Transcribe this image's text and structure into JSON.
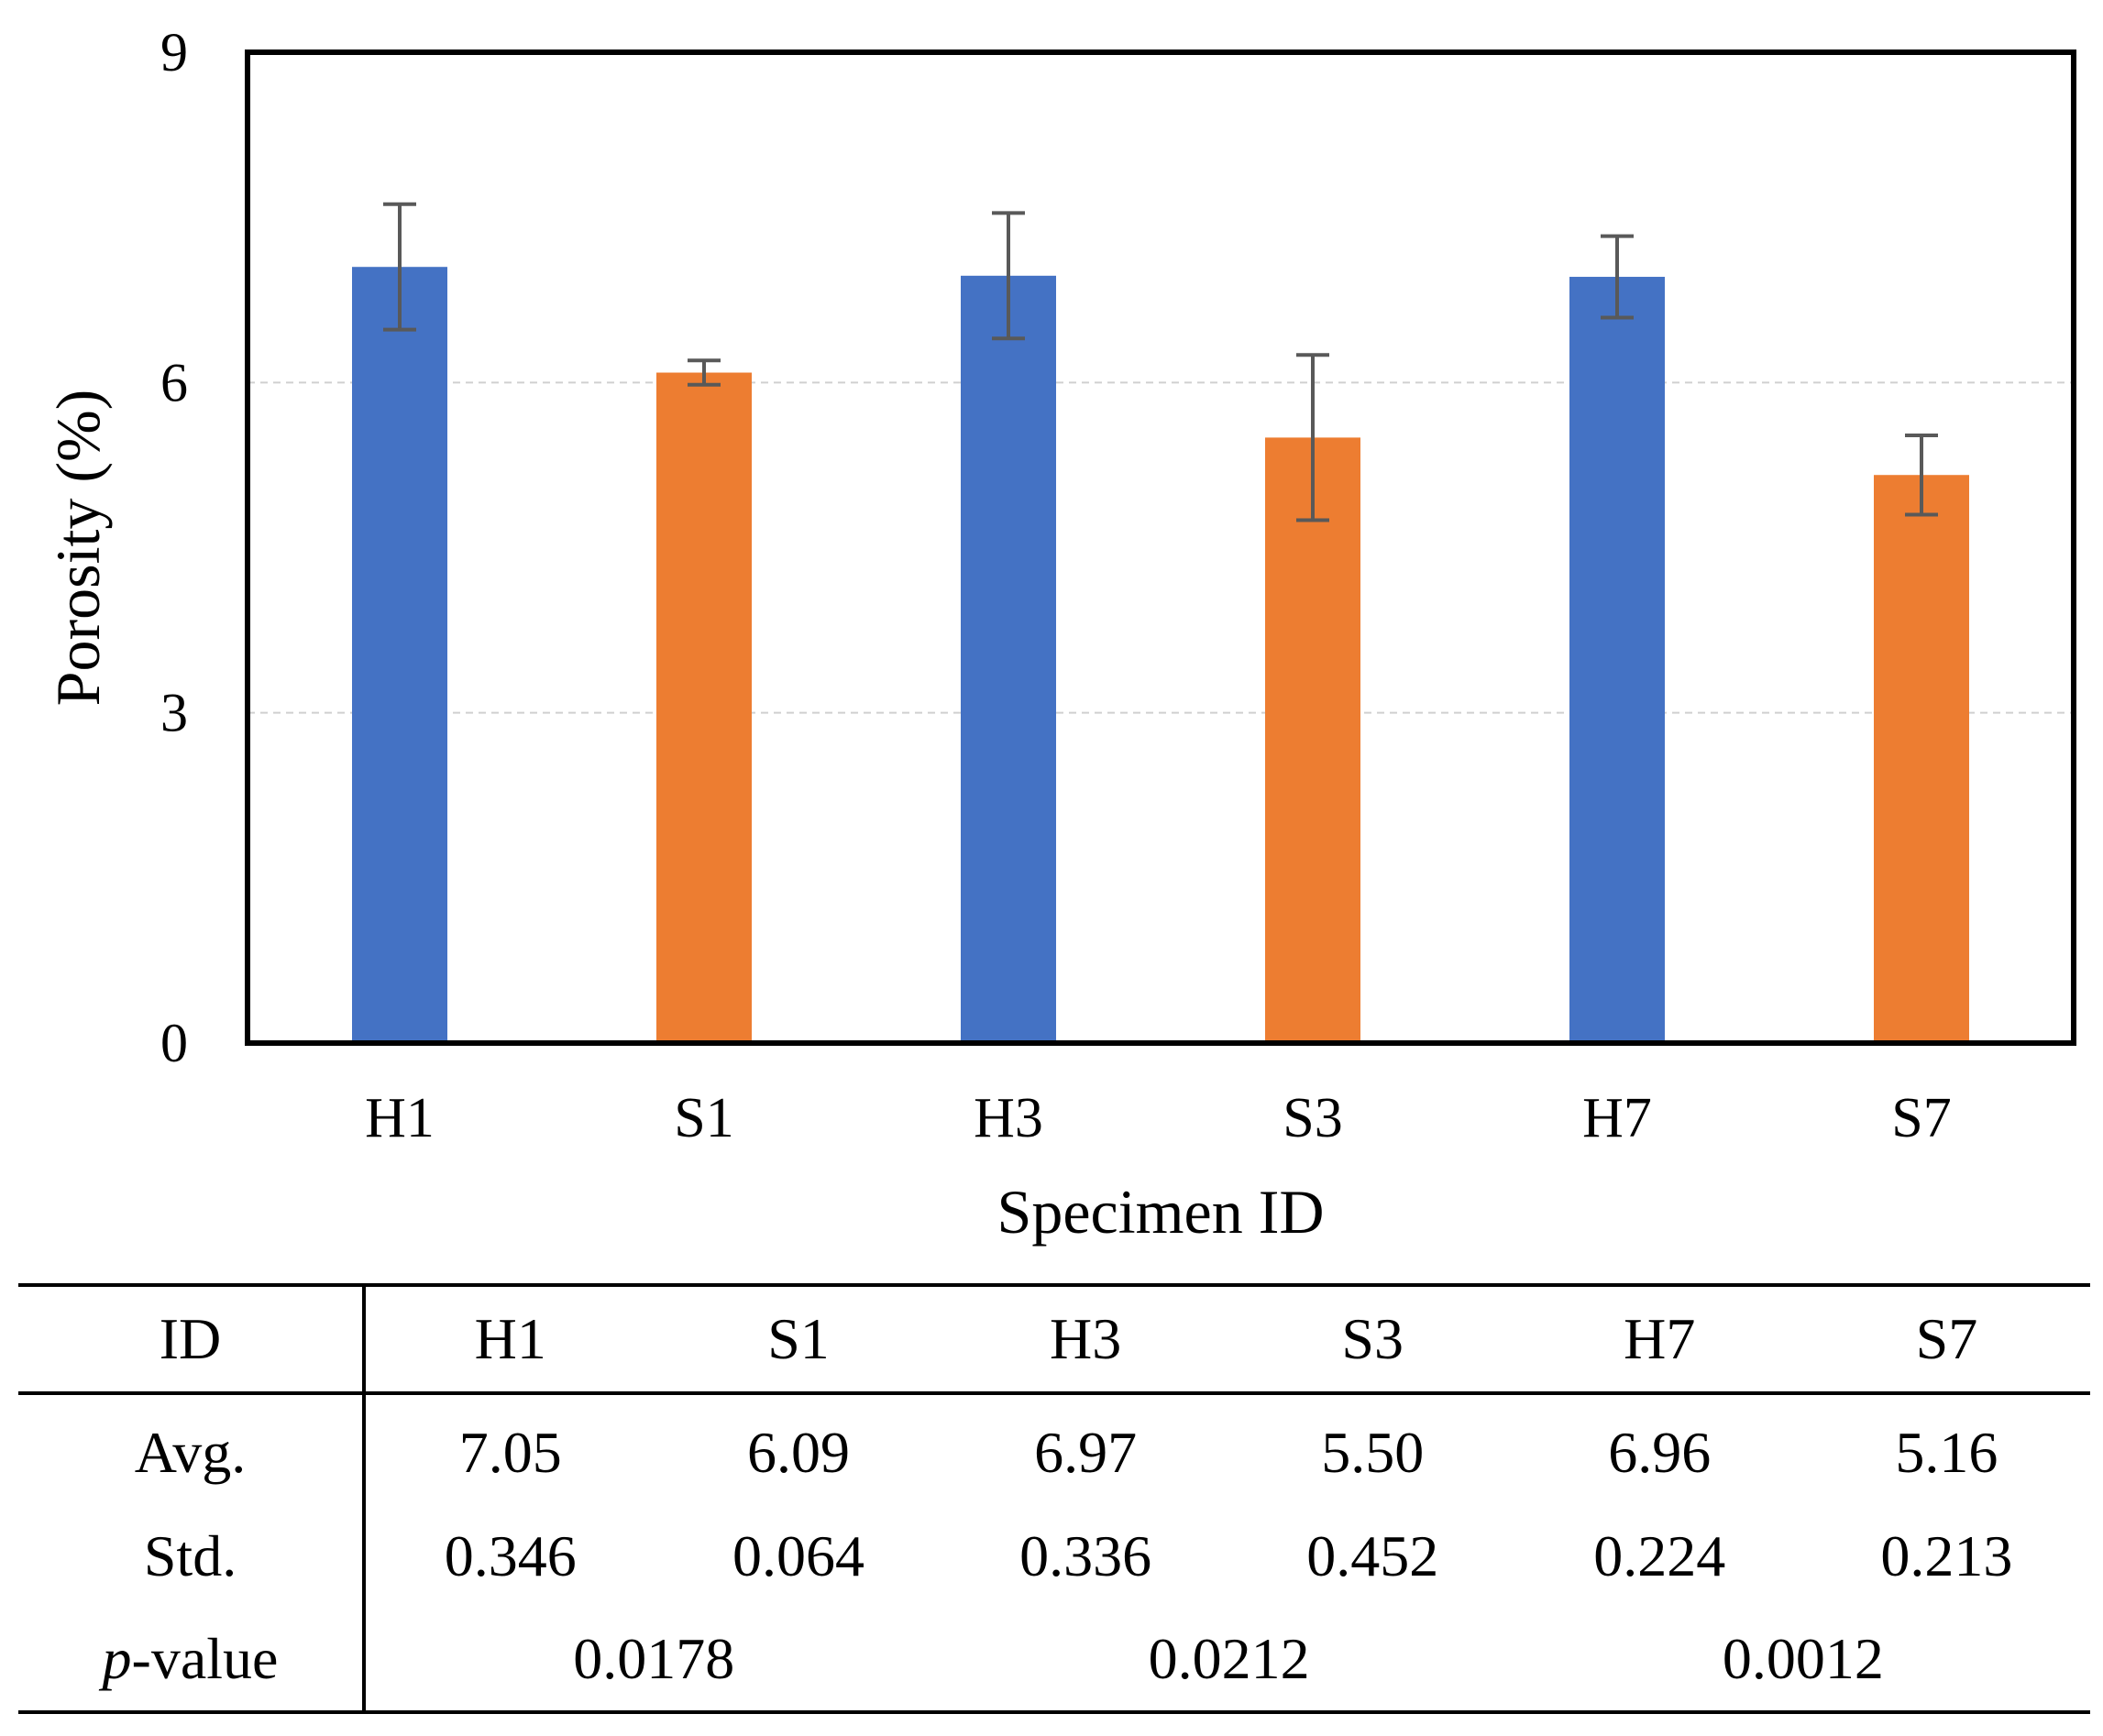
{
  "chart_data": {
    "type": "bar",
    "title": "",
    "xlabel": "Specimen ID",
    "ylabel": "Porosity (%)",
    "ylim": [
      0,
      9
    ],
    "yticks": [
      0,
      3,
      6,
      9
    ],
    "grid": true,
    "categories": [
      "H1",
      "S1",
      "H3",
      "S3",
      "H7",
      "S7"
    ],
    "values": [
      7.05,
      6.09,
      6.97,
      5.5,
      6.96,
      5.16
    ],
    "errors": [
      0.57,
      0.11,
      0.57,
      0.75,
      0.37,
      0.36
    ],
    "colors": [
      "#4472C4",
      "#ED7D31",
      "#4472C4",
      "#ED7D31",
      "#4472C4",
      "#ED7D31"
    ],
    "error_color": "#595959"
  },
  "table": {
    "header": [
      "ID",
      "H1",
      "S1",
      "H3",
      "S3",
      "H7",
      "S7"
    ],
    "avg": [
      "Avg.",
      "7.05",
      "6.09",
      "6.97",
      "5.50",
      "6.96",
      "5.16"
    ],
    "std": [
      "Std.",
      "0.346",
      "0.064",
      "0.336",
      "0.452",
      "0.224",
      "0.213"
    ],
    "pvalue": {
      "label_prefix": "p",
      "label_suffix": "-value",
      "values": [
        "0.0178",
        "0.0212",
        "0.0012"
      ]
    }
  }
}
